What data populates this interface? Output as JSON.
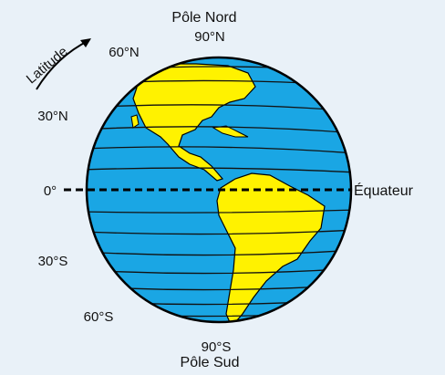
{
  "labels": {
    "north_pole": "Pôle Nord",
    "lat_90n": "90°N",
    "lat_60n": "60°N",
    "lat_30n": "30°N",
    "lat_0": "0°",
    "equator": "Équateur",
    "lat_30s": "30°S",
    "lat_60s": "60°S",
    "lat_90s": "90°S",
    "south_pole": "Pôle Sud",
    "latitude": "Latitude"
  }
}
